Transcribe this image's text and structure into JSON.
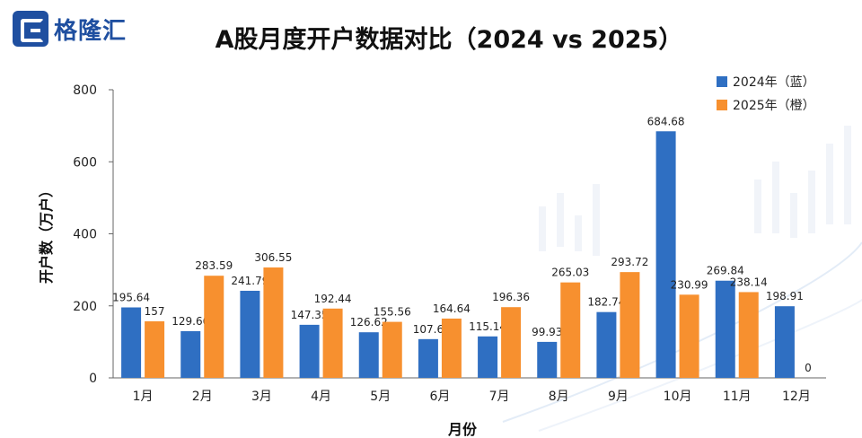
{
  "brand": {
    "name": "格隆汇"
  },
  "chart_data": {
    "type": "bar",
    "title": "A股月度开户数据对比（2024 vs 2025）",
    "xlabel": "月份",
    "ylabel": "开户数（万户）",
    "ylim": [
      0,
      800
    ],
    "yticks": [
      0,
      200,
      400,
      600,
      800
    ],
    "categories": [
      "1月",
      "2月",
      "3月",
      "4月",
      "5月",
      "6月",
      "7月",
      "8月",
      "9月",
      "10月",
      "11月",
      "12月"
    ],
    "series": [
      {
        "name": "2024年（蓝）",
        "color": "#2f6fc2",
        "values": [
          195.64,
          129.66,
          241.79,
          147.35,
          126.62,
          107.6,
          115.14,
          99.93,
          182.74,
          684.68,
          269.84,
          198.91
        ],
        "labels": [
          "195.64",
          "129.66",
          "241.79",
          "147.35",
          "126.62",
          "107.6",
          "115.14",
          "99.93",
          "182.74",
          "684.68",
          "269.84",
          "198.91"
        ]
      },
      {
        "name": "2025年（橙）",
        "color": "#f7902f",
        "values": [
          157,
          283.59,
          306.55,
          192.44,
          155.56,
          164.64,
          196.36,
          265.03,
          293.72,
          230.99,
          238.14,
          0
        ],
        "labels": [
          "157",
          "283.59",
          "306.55",
          "192.44",
          "155.56",
          "164.64",
          "196.36",
          "265.03",
          "293.72",
          "230.99",
          "238.14",
          "0"
        ]
      }
    ]
  }
}
